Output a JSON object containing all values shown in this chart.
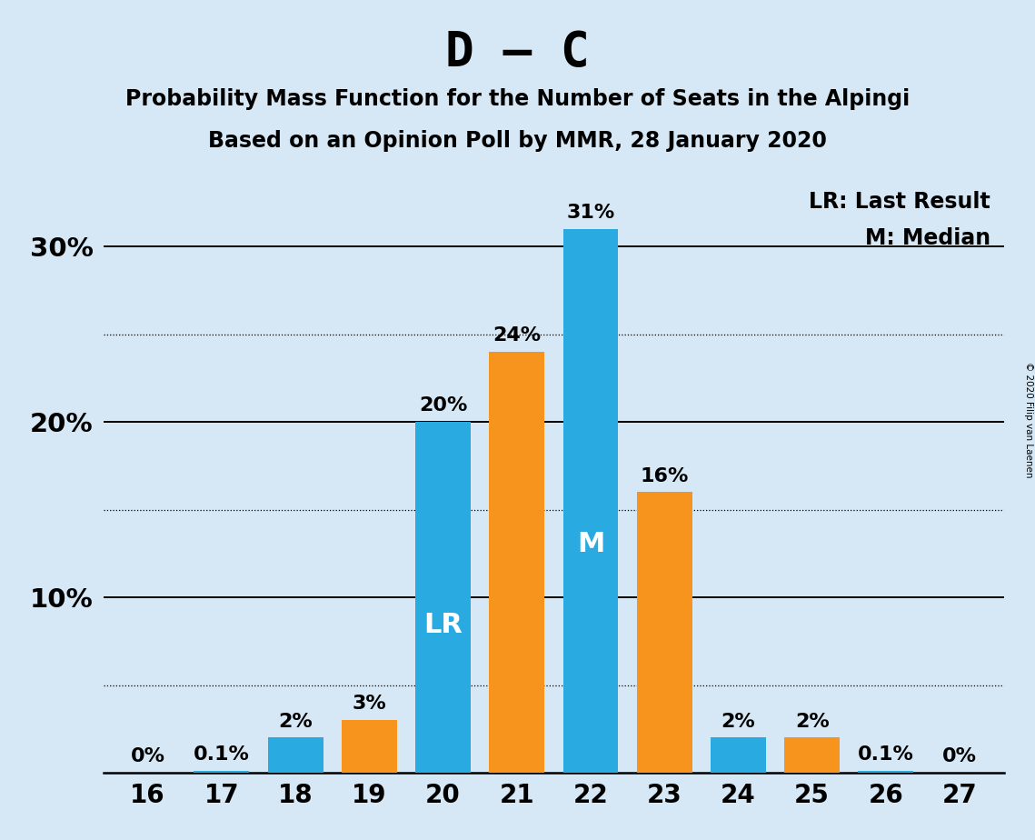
{
  "title": "D – C",
  "subtitle1": "Probability Mass Function for the Number of Seats in the Alpingi",
  "subtitle2": "Based on an Opinion Poll by MMR, 28 January 2020",
  "copyright": "© 2020 Filip van Laenen",
  "categories": [
    16,
    17,
    18,
    19,
    20,
    21,
    22,
    23,
    24,
    25,
    26,
    27
  ],
  "blue_values": [
    0.0,
    0.1,
    2.0,
    0.0,
    20.0,
    0.0,
    31.0,
    0.0,
    2.0,
    0.0,
    0.1,
    0.0
  ],
  "orange_values": [
    0.0,
    0.0,
    0.0,
    3.0,
    0.0,
    24.0,
    0.0,
    16.0,
    0.0,
    2.0,
    0.0,
    0.0
  ],
  "blue_color": "#29ABE2",
  "orange_color": "#F7941D",
  "background_color": "#D6E8F5",
  "bar_width": 0.75,
  "ylim": [
    0,
    34
  ],
  "yticks": [
    10,
    20,
    30
  ],
  "dotted_yticks": [
    5,
    15,
    25
  ],
  "solid_yticks": [
    10,
    20,
    30
  ],
  "lr_bar": 20,
  "median_bar": 22,
  "legend_text1": "LR: Last Result",
  "legend_text2": "M: Median",
  "blue_labels": {
    "16": "0%",
    "17": "0.1%",
    "18": "2%",
    "20": "20%",
    "22": "31%",
    "24": "2%",
    "26": "0.1%",
    "27": "0%"
  },
  "orange_labels": {
    "19": "3%",
    "21": "24%",
    "23": "16%",
    "25": "2%"
  },
  "bar_text_blue": {
    "20": "LR",
    "22": "M"
  }
}
